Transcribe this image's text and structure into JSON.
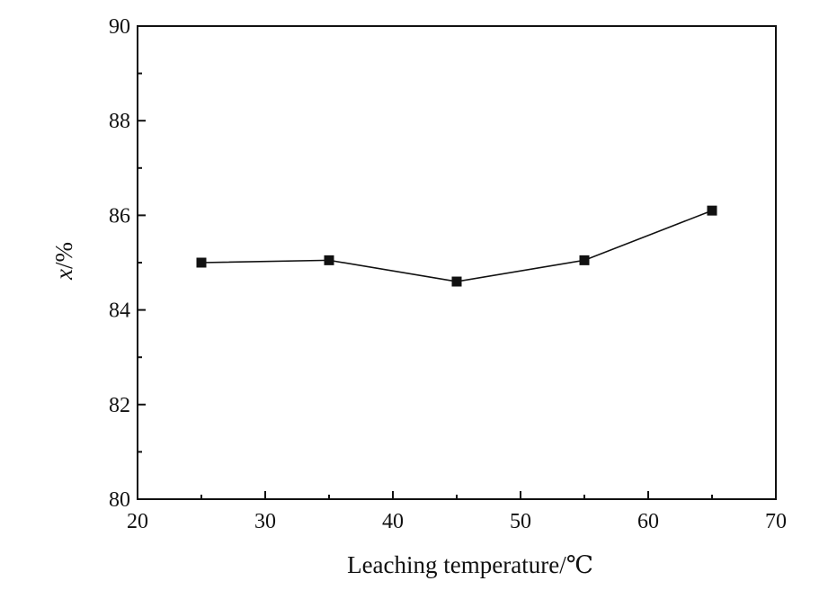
{
  "chart_data": {
    "type": "line",
    "xlabel": "Leaching temperature/℃",
    "ylabel_main": "x",
    "ylabel_suffix": "/%",
    "xlim": [
      20,
      70
    ],
    "ylim": [
      80,
      90
    ],
    "xticks": [
      20,
      30,
      40,
      50,
      60,
      70
    ],
    "yticks": [
      80,
      82,
      84,
      86,
      88,
      90
    ],
    "x_minor_step": 5,
    "y_minor_step": 1,
    "grid": false,
    "series": [
      {
        "marker": "square",
        "x": [
          25,
          35,
          45,
          55,
          65
        ],
        "values": [
          85.0,
          85.05,
          84.6,
          85.05,
          86.1
        ]
      }
    ]
  }
}
